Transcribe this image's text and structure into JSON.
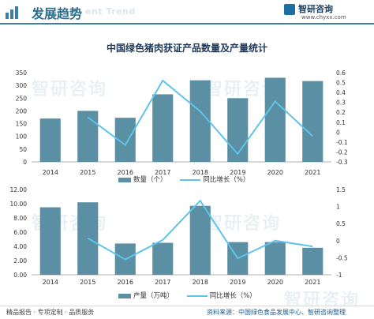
{
  "header": {
    "title": "发展趋势",
    "watermark_en": "ent Trend",
    "logo_text": "智研咨询",
    "logo_url": "www.chyxx.com"
  },
  "watermarks": [
    "智研咨询",
    "智研咨询",
    "智研咨询",
    "智研咨询",
    "智研咨询"
  ],
  "chart_data": [
    {
      "type": "bar",
      "title": "中国绿色猪肉获证产品数量及产量统计",
      "categories": [
        "2014",
        "2015",
        "2016",
        "2017",
        "2018",
        "2019",
        "2020",
        "2021"
      ],
      "series": [
        {
          "name": "数量（个）",
          "type": "bar",
          "axis": "left",
          "values": [
            170,
            200,
            173,
            265,
            320,
            250,
            330,
            317
          ]
        },
        {
          "name": "同比增长（%）",
          "type": "line",
          "axis": "right",
          "values": [
            null,
            0.15,
            -0.13,
            0.52,
            0.21,
            -0.22,
            0.31,
            -0.04
          ]
        }
      ],
      "ylim_left": [
        0,
        350
      ],
      "yticks_left": [
        "0",
        "50",
        "100",
        "150",
        "200",
        "250",
        "300",
        "350"
      ],
      "ylim_right": [
        -0.3,
        0.6
      ],
      "yticks_right": [
        "-0.3",
        "-0.2",
        "-0.1",
        "0",
        "0.1",
        "0.2",
        "0.3",
        "0.4",
        "0.5",
        "0.6"
      ],
      "legend_position": "bottom",
      "colors": {
        "bar": "#5b8fa3",
        "line": "#5ec4e8"
      }
    },
    {
      "type": "bar",
      "categories": [
        "2014",
        "2015",
        "2016",
        "2017",
        "2018",
        "2019",
        "2020",
        "2021"
      ],
      "series": [
        {
          "name": "产量（万吨）",
          "type": "bar",
          "axis": "left",
          "values": [
            9.5,
            10.2,
            4.4,
            4.5,
            9.7,
            4.6,
            4.6,
            3.8
          ]
        },
        {
          "name": "同比增长（%）",
          "type": "line",
          "axis": "right",
          "values": [
            null,
            0.07,
            -0.55,
            0.02,
            1.17,
            -0.52,
            0.0,
            -0.17
          ]
        }
      ],
      "ylim_left": [
        0,
        12
      ],
      "yticks_left": [
        "0.00",
        "2.00",
        "4.00",
        "6.00",
        "8.00",
        "10.00",
        "12.00"
      ],
      "ylim_right": [
        -1,
        1.5
      ],
      "yticks_right": [
        "-1",
        "-0.5",
        "0",
        "0.5",
        "1",
        "1.5"
      ],
      "legend_position": "bottom",
      "colors": {
        "bar": "#5b8fa3",
        "line": "#5ec4e8"
      }
    }
  ],
  "footer": {
    "left": "精品报告 · 专项定制 · 品质服务",
    "right": "资料来源：中国绿色食品发展中心、智研咨询整理"
  }
}
